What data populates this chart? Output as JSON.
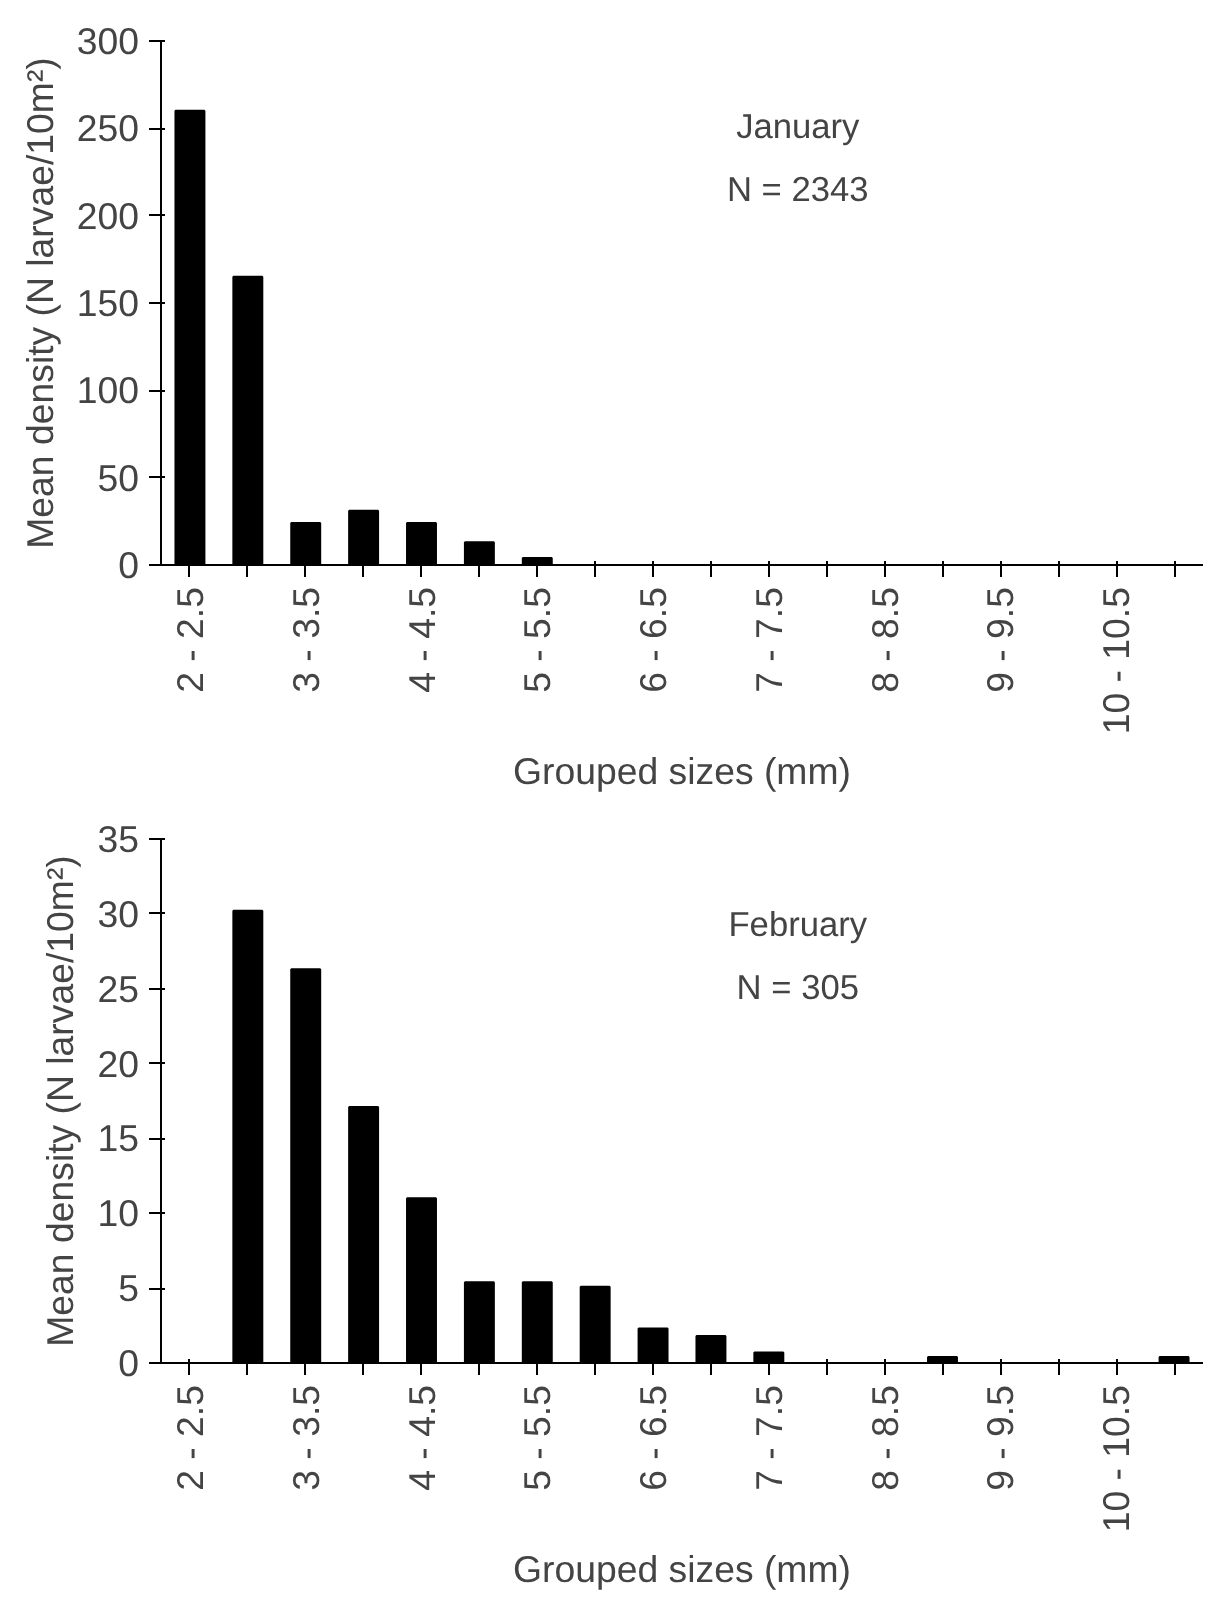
{
  "chart_data": [
    {
      "type": "bar",
      "categories": [
        "2 - 2.5",
        null,
        "3 - 3.5",
        null,
        "4 - 4.5",
        null,
        "5 - 5.5",
        null,
        "6 - 6.5",
        null,
        "7 - 7.5",
        null,
        "8 - 8.5",
        null,
        "9 - 9.5",
        null,
        "10 - 10.5",
        null
      ],
      "values": [
        260,
        165,
        24,
        31,
        24,
        13,
        4,
        0,
        0,
        0,
        0,
        0,
        0,
        0,
        0,
        0,
        0,
        0
      ],
      "color": "#000000",
      "xlabel": "Grouped sizes (mm)",
      "ylabel": "Mean density (N larvae/10m²)",
      "ylim": [
        0,
        300
      ],
      "yticks": [
        0,
        50,
        100,
        150,
        200,
        250,
        300
      ],
      "annotations": [
        "January",
        "N = 2343"
      ],
      "grid": false
    },
    {
      "type": "bar",
      "categories": [
        "2 - 2.5",
        null,
        "3 - 3.5",
        null,
        "4 - 4.5",
        null,
        "5 - 5.5",
        null,
        "6 - 6.5",
        null,
        "7 - 7.5",
        null,
        "8 - 8.5",
        null,
        "9 - 9.5",
        null,
        "10 - 10.5",
        null
      ],
      "values": [
        0,
        30.2,
        26.3,
        17.1,
        11,
        5.4,
        5.4,
        5.1,
        2.3,
        1.8,
        0.7,
        0,
        0,
        0.4,
        0,
        0,
        0,
        0.4
      ],
      "color": "#000000",
      "xlabel": "Grouped sizes (mm)",
      "ylabel": "Mean density (N larvae/10m²)",
      "ylim": [
        0,
        35
      ],
      "yticks": [
        0,
        5,
        10,
        15,
        20,
        25,
        30,
        35
      ],
      "annotations": [
        "February",
        "N = 305"
      ],
      "grid": false
    }
  ]
}
